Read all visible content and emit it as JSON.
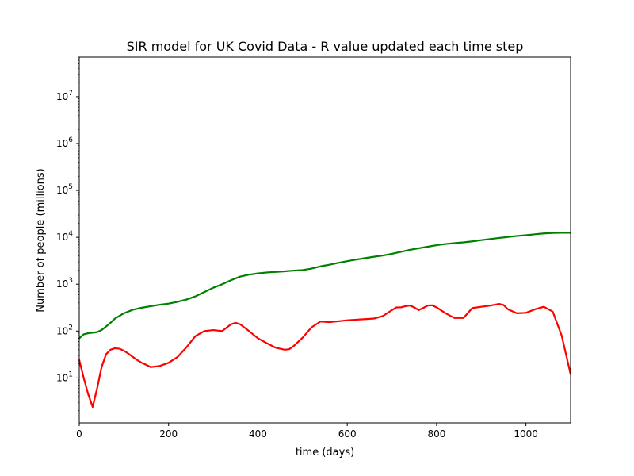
{
  "chart_data": {
    "type": "line",
    "title": "SIR model for UK Covid Data - R value updated each time step",
    "xlabel": "time (days)",
    "ylabel": "Number of people (millions)",
    "xlim": [
      0,
      1100
    ],
    "ylim": [
      1.1,
      70000000
    ],
    "yscale": "log",
    "grid": false,
    "legend": "none",
    "xticks": [
      {
        "value": 0,
        "label": "0"
      },
      {
        "value": 200,
        "label": "200"
      },
      {
        "value": 400,
        "label": "400"
      },
      {
        "value": 600,
        "label": "600"
      },
      {
        "value": 800,
        "label": "800"
      },
      {
        "value": 1000,
        "label": "1000"
      }
    ],
    "yticks": [
      {
        "value": 10,
        "base": "10",
        "exp": "1"
      },
      {
        "value": 100,
        "base": "10",
        "exp": "2"
      },
      {
        "value": 1000,
        "base": "10",
        "exp": "3"
      },
      {
        "value": 10000,
        "base": "10",
        "exp": "4"
      },
      {
        "value": 100000,
        "base": "10",
        "exp": "5"
      },
      {
        "value": 1000000,
        "base": "10",
        "exp": "6"
      },
      {
        "value": 10000000,
        "base": "10",
        "exp": "7"
      }
    ],
    "series": [
      {
        "color": "#008000",
        "points": [
          [
            0,
            70
          ],
          [
            10,
            85
          ],
          [
            20,
            90
          ],
          [
            40,
            95
          ],
          [
            50,
            105
          ],
          [
            60,
            125
          ],
          [
            70,
            150
          ],
          [
            80,
            185
          ],
          [
            100,
            240
          ],
          [
            120,
            285
          ],
          [
            140,
            315
          ],
          [
            160,
            340
          ],
          [
            180,
            365
          ],
          [
            200,
            385
          ],
          [
            220,
            420
          ],
          [
            240,
            470
          ],
          [
            260,
            550
          ],
          [
            280,
            680
          ],
          [
            300,
            840
          ],
          [
            320,
            1000
          ],
          [
            340,
            1220
          ],
          [
            360,
            1450
          ],
          [
            380,
            1600
          ],
          [
            400,
            1700
          ],
          [
            420,
            1780
          ],
          [
            440,
            1830
          ],
          [
            460,
            1880
          ],
          [
            480,
            1950
          ],
          [
            500,
            2000
          ],
          [
            520,
            2150
          ],
          [
            540,
            2400
          ],
          [
            560,
            2600
          ],
          [
            580,
            2850
          ],
          [
            600,
            3100
          ],
          [
            620,
            3350
          ],
          [
            640,
            3600
          ],
          [
            660,
            3850
          ],
          [
            680,
            4100
          ],
          [
            700,
            4450
          ],
          [
            720,
            4900
          ],
          [
            740,
            5400
          ],
          [
            760,
            5850
          ],
          [
            780,
            6300
          ],
          [
            800,
            6800
          ],
          [
            820,
            7200
          ],
          [
            840,
            7500
          ],
          [
            860,
            7800
          ],
          [
            880,
            8200
          ],
          [
            900,
            8700
          ],
          [
            920,
            9200
          ],
          [
            940,
            9700
          ],
          [
            960,
            10200
          ],
          [
            980,
            10700
          ],
          [
            1000,
            11100
          ],
          [
            1020,
            11600
          ],
          [
            1040,
            12100
          ],
          [
            1060,
            12400
          ],
          [
            1080,
            12500
          ],
          [
            1100,
            12500
          ]
        ]
      },
      {
        "color": "#ff0000",
        "points": [
          [
            0,
            24
          ],
          [
            10,
            10
          ],
          [
            20,
            4.5
          ],
          [
            30,
            2.4
          ],
          [
            40,
            6
          ],
          [
            50,
            17
          ],
          [
            60,
            32
          ],
          [
            70,
            40
          ],
          [
            80,
            43
          ],
          [
            90,
            42
          ],
          [
            100,
            38
          ],
          [
            110,
            33
          ],
          [
            120,
            28
          ],
          [
            130,
            24
          ],
          [
            140,
            21
          ],
          [
            150,
            19
          ],
          [
            160,
            17
          ],
          [
            180,
            18
          ],
          [
            200,
            21
          ],
          [
            220,
            28
          ],
          [
            240,
            45
          ],
          [
            260,
            78
          ],
          [
            280,
            100
          ],
          [
            300,
            105
          ],
          [
            320,
            100
          ],
          [
            340,
            140
          ],
          [
            350,
            150
          ],
          [
            360,
            140
          ],
          [
            380,
            100
          ],
          [
            400,
            70
          ],
          [
            420,
            55
          ],
          [
            440,
            44
          ],
          [
            460,
            40
          ],
          [
            470,
            41
          ],
          [
            480,
            48
          ],
          [
            500,
            72
          ],
          [
            520,
            120
          ],
          [
            540,
            160
          ],
          [
            560,
            155
          ],
          [
            580,
            162
          ],
          [
            600,
            170
          ],
          [
            620,
            175
          ],
          [
            640,
            180
          ],
          [
            660,
            185
          ],
          [
            680,
            210
          ],
          [
            700,
            280
          ],
          [
            710,
            320
          ],
          [
            720,
            320
          ],
          [
            730,
            340
          ],
          [
            740,
            350
          ],
          [
            750,
            320
          ],
          [
            760,
            280
          ],
          [
            770,
            310
          ],
          [
            780,
            350
          ],
          [
            790,
            355
          ],
          [
            800,
            320
          ],
          [
            820,
            240
          ],
          [
            840,
            190
          ],
          [
            860,
            190
          ],
          [
            880,
            310
          ],
          [
            900,
            330
          ],
          [
            920,
            350
          ],
          [
            940,
            380
          ],
          [
            950,
            360
          ],
          [
            960,
            290
          ],
          [
            980,
            240
          ],
          [
            1000,
            245
          ],
          [
            1020,
            290
          ],
          [
            1040,
            330
          ],
          [
            1060,
            260
          ],
          [
            1080,
            80
          ],
          [
            1100,
            12
          ]
        ]
      }
    ]
  }
}
